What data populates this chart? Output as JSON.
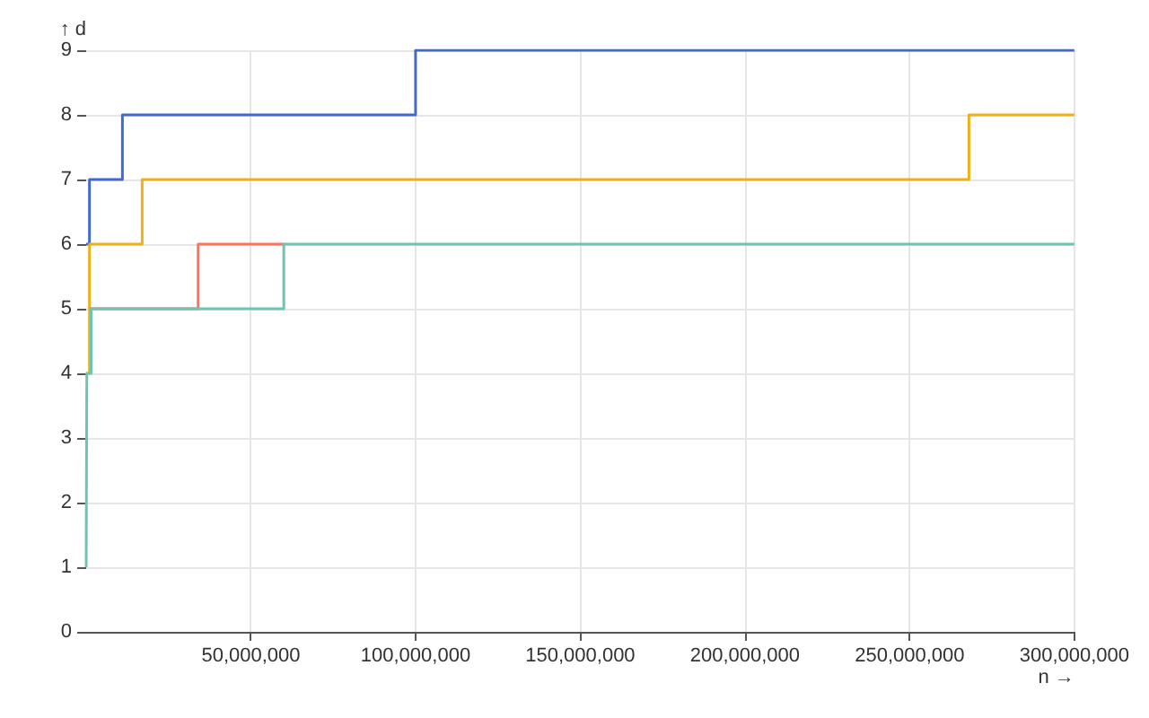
{
  "chart_data": {
    "type": "step",
    "xlabel": "n →",
    "ylabel": "↑ d",
    "series": [
      {
        "color": "#4269d0",
        "x": [
          0,
          1000000,
          11000000,
          100000000,
          300000000
        ],
        "values": [
          6,
          7,
          8,
          9,
          9
        ]
      },
      {
        "color": "#efb118",
        "x": [
          0,
          1000000,
          17000000,
          268000000,
          300000000
        ],
        "values": [
          4,
          6,
          7,
          8,
          8
        ]
      },
      {
        "color": "#ff725c",
        "x": [
          1000000,
          34000000,
          60000000
        ],
        "values": [
          5,
          6,
          6
        ]
      },
      {
        "color": "#6cc5b0",
        "x": [
          0,
          200000,
          1500000,
          60000000,
          300000000
        ],
        "values": [
          1,
          4,
          5,
          6,
          6
        ]
      }
    ],
    "xlim": [
      0,
      300000000
    ],
    "xticks": [
      {
        "value": 50000000,
        "label": "50,000,000"
      },
      {
        "value": 100000000,
        "label": "100,000,000"
      },
      {
        "value": 150000000,
        "label": "150,000,000"
      },
      {
        "value": 200000000,
        "label": "200,000,000"
      },
      {
        "value": 250000000,
        "label": "250,000,000"
      },
      {
        "value": 300000000,
        "label": "300,000,000"
      }
    ],
    "ylim": [
      0,
      9
    ],
    "yticks": [
      0,
      1,
      2,
      3,
      4,
      5,
      6,
      7,
      8,
      9
    ],
    "grid": true
  }
}
